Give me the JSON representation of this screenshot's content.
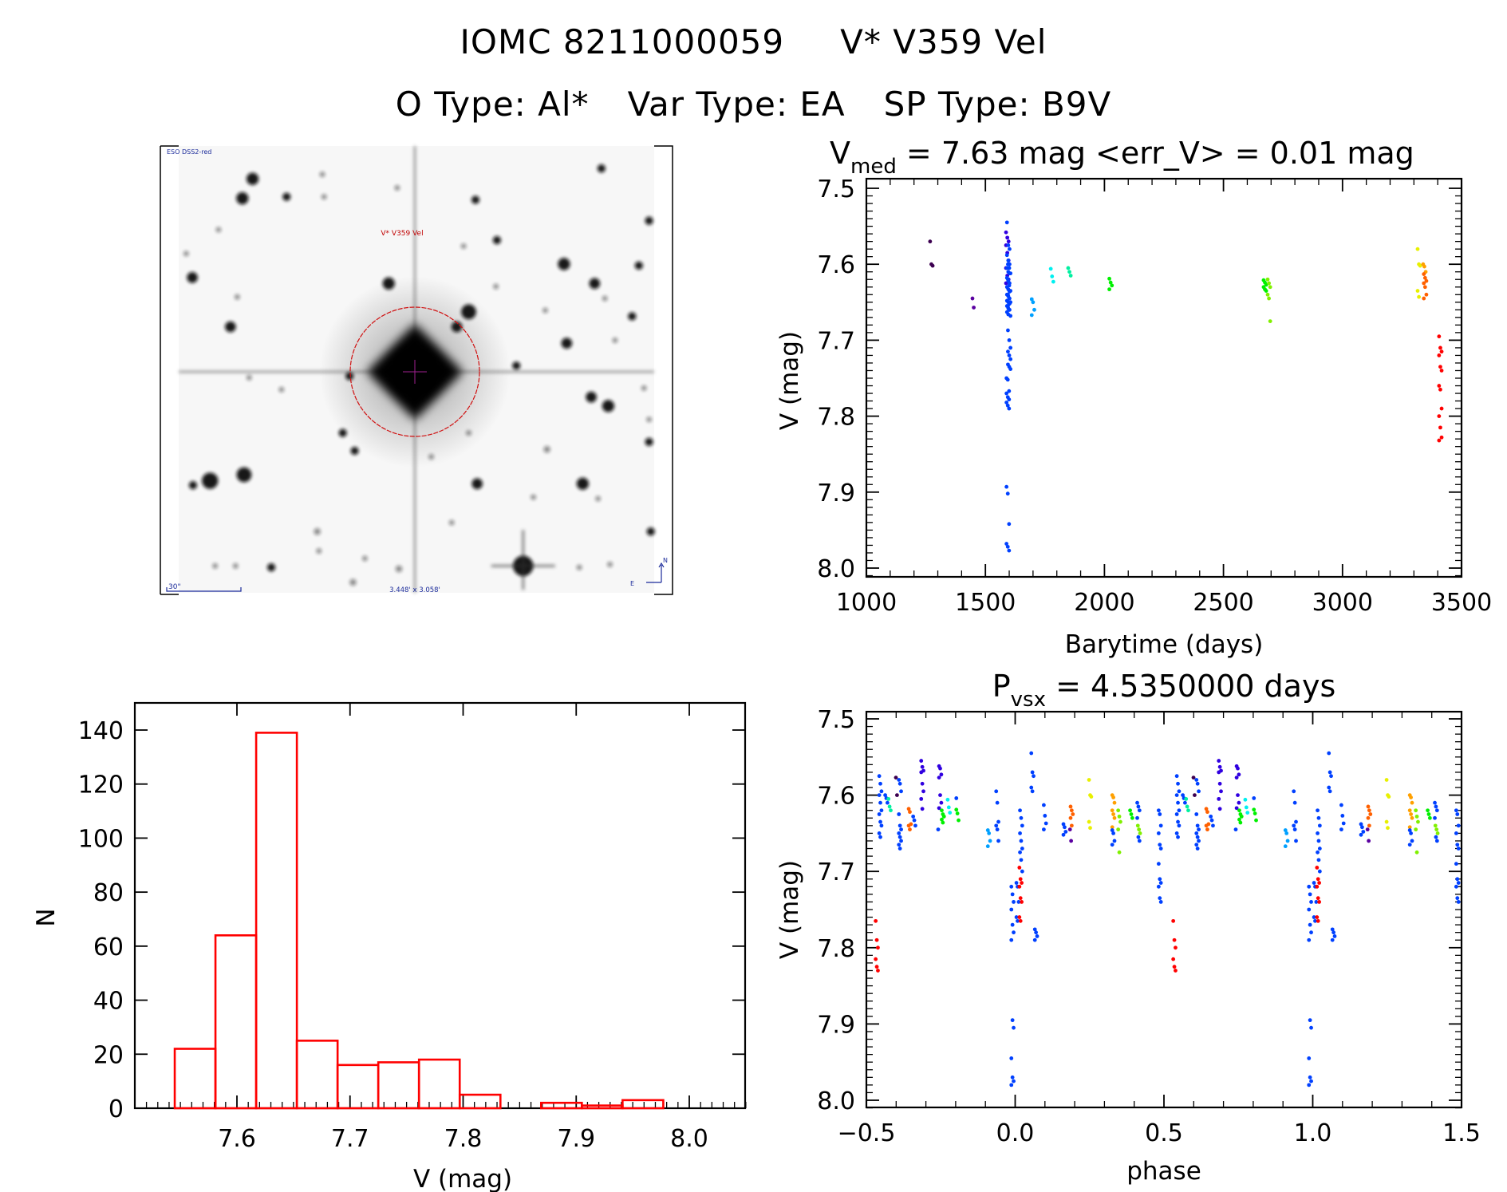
{
  "header": {
    "line1_id": "IOMC 8211000059",
    "line1_name": "V* V359 Vel",
    "line2_otype": "O Type: Al*",
    "line2_vartype": "Var Type: EA",
    "line2_sptype": "SP Type: B9V"
  },
  "finder_image": {
    "survey_label": "ESO DSS2-red",
    "target_label": "V* V359 Vel",
    "scale_label": "30\"",
    "fov_label": "3.448' x 3.058'",
    "north_label": "N",
    "east_label": "E"
  },
  "colors": {
    "dpurple": "#3c0050",
    "purple": "#5a00a0",
    "indigo": "#3000e0",
    "blue": "#0040ff",
    "lightblue": "#00a0ff",
    "cyan": "#00f0f0",
    "teal": "#00f0a0",
    "green": "#00f000",
    "lime": "#80f000",
    "yellow": "#e8f000",
    "orange": "#ffa000",
    "dorange": "#ff6000",
    "red": "#ff0000",
    "hist": "#ff0000"
  },
  "chart_data": [
    {
      "type": "scatter",
      "title_main": "V",
      "title_sub": "med",
      "title_rest": " = 7.63 mag <err_V> = 0.01 mag",
      "xlabel": "Barytime (days)",
      "ylabel": "V (mag)",
      "xlim": [
        1000,
        3500
      ],
      "ylim": [
        7.5,
        8.0
      ],
      "y_inverted": true,
      "xticks": [
        "1000",
        "1500",
        "2000",
        "2500",
        "3000",
        "3500"
      ],
      "yticks": [
        "7.5",
        "7.6",
        "7.7",
        "7.8",
        "7.9",
        "8.0"
      ],
      "groups": [
        {
          "t": 1273,
          "c": "dpurple",
          "m": [
            7.57,
            7.6,
            7.602
          ]
        },
        {
          "t": 1451,
          "c": "purple",
          "m": [
            7.645,
            7.657
          ]
        },
        {
          "t": 1592,
          "c": "indigo",
          "m": [
            7.558,
            7.565,
            7.57,
            7.575,
            7.585,
            7.595,
            7.605,
            7.615,
            7.62,
            7.625
          ]
        },
        {
          "t": 1596,
          "c": "blue",
          "m": [
            7.545,
            7.575,
            7.58,
            7.588,
            7.595,
            7.6,
            7.605,
            7.61,
            7.612,
            7.618,
            7.622,
            7.625,
            7.63,
            7.633,
            7.636,
            7.64,
            7.642,
            7.645,
            7.648,
            7.65,
            7.652,
            7.655,
            7.658,
            7.66,
            7.663,
            7.666
          ]
        },
        {
          "t": 1600,
          "c": "blue",
          "m": [
            7.6,
            7.605,
            7.612,
            7.62,
            7.628,
            7.635,
            7.64,
            7.645,
            7.65,
            7.655,
            7.66,
            7.668,
            7.687,
            7.7,
            7.71,
            7.715,
            7.72,
            7.725,
            7.732,
            7.735,
            7.738
          ]
        },
        {
          "t": 1594,
          "c": "blue",
          "m": [
            7.75,
            7.752,
            7.767,
            7.77,
            7.775,
            7.778,
            7.782,
            7.786,
            7.79,
            7.893,
            7.902,
            7.942,
            7.968,
            7.972,
            7.977
          ]
        },
        {
          "t": 1700,
          "c": "lightblue",
          "m": [
            7.646,
            7.65,
            7.66,
            7.667
          ]
        },
        {
          "t": 1780,
          "c": "cyan",
          "m": [
            7.606,
            7.616,
            7.623
          ]
        },
        {
          "t": 1853,
          "c": "teal",
          "m": [
            7.605,
            7.61,
            7.615
          ]
        },
        {
          "t": 2026,
          "c": "green",
          "m": [
            7.619,
            7.624,
            7.628,
            7.633
          ]
        },
        {
          "t": 2674,
          "c": "green",
          "m": [
            7.621,
            7.624,
            7.627,
            7.63,
            7.633,
            7.635
          ]
        },
        {
          "t": 2691,
          "c": "lime",
          "m": [
            7.62,
            7.625,
            7.63,
            7.64,
            7.645,
            7.675
          ]
        },
        {
          "t": 3321,
          "c": "yellow",
          "m": [
            7.58,
            7.6,
            7.602,
            7.635,
            7.643
          ]
        },
        {
          "t": 3344,
          "c": "orange",
          "m": [
            7.6,
            7.603,
            7.61
          ]
        },
        {
          "t": 3347,
          "c": "dorange",
          "m": [
            7.613,
            7.618,
            7.622,
            7.625,
            7.63,
            7.64,
            7.645
          ]
        },
        {
          "t": 3411,
          "c": "red",
          "m": [
            7.695,
            7.71,
            7.715,
            7.72,
            7.735,
            7.74,
            7.76,
            7.765,
            7.79,
            7.8,
            7.815,
            7.828,
            7.832
          ]
        }
      ]
    },
    {
      "type": "scatter",
      "title_main": "P",
      "title_sub": "vsx",
      "title_rest": " = 4.5350000 days",
      "xlabel": "phase",
      "ylabel": "V (mag)",
      "xlim": [
        -0.5,
        1.5
      ],
      "ylim": [
        7.5,
        8.0
      ],
      "y_inverted": true,
      "phase_period": 1,
      "xticks": [
        "−0.5",
        "0.0",
        "0.5",
        "1.0",
        "1.5"
      ],
      "yticks": [
        "7.5",
        "7.6",
        "7.7",
        "7.8",
        "7.9",
        "8.0"
      ],
      "groups": [
        {
          "p": 0.991,
          "c": "blue",
          "m": [
            7.72,
            7.73,
            7.74,
            7.75,
            7.77,
            7.78,
            7.79,
            7.895,
            7.905,
            7.945,
            7.97,
            7.975,
            7.98
          ]
        },
        {
          "p": 0.008,
          "c": "blue",
          "m": [
            7.715,
            7.72,
            7.74,
            7.76,
            7.765
          ]
        },
        {
          "p": 0.018,
          "c": "red",
          "m": [
            7.695,
            7.71,
            7.715,
            7.72,
            7.735,
            7.74,
            7.76,
            7.765
          ]
        },
        {
          "p": 0.02,
          "c": "blue",
          "m": [
            7.62,
            7.63,
            7.64,
            7.65,
            7.66,
            7.67,
            7.675,
            7.685,
            7.7
          ]
        },
        {
          "p": 0.058,
          "c": "blue",
          "m": [
            7.545,
            7.57,
            7.575,
            7.59,
            7.595
          ]
        },
        {
          "p": 0.07,
          "c": "blue",
          "m": [
            7.776,
            7.78,
            7.785,
            7.79
          ]
        },
        {
          "p": 0.1,
          "c": "blue",
          "m": [
            7.613,
            7.627,
            7.637,
            7.645
          ]
        },
        {
          "p": 0.166,
          "c": "blue",
          "m": [
            7.638,
            7.642,
            7.648,
            7.652
          ]
        },
        {
          "p": 0.19,
          "c": "dorange",
          "m": [
            7.615,
            7.62,
            7.625,
            7.63,
            7.64
          ]
        },
        {
          "p": 0.188,
          "c": "purple",
          "m": [
            7.645,
            7.66
          ]
        },
        {
          "p": 0.252,
          "c": "yellow",
          "m": [
            7.58,
            7.6,
            7.602,
            7.635,
            7.643
          ]
        },
        {
          "p": 0.33,
          "c": "orange",
          "m": [
            7.6,
            7.603,
            7.61,
            7.62,
            7.625,
            7.63,
            7.642
          ]
        },
        {
          "p": 0.33,
          "c": "blue",
          "m": [
            7.646,
            7.65,
            7.66,
            7.665
          ]
        },
        {
          "p": 0.35,
          "c": "lime",
          "m": [
            7.62,
            7.628,
            7.635,
            7.645,
            7.675
          ]
        },
        {
          "p": 0.39,
          "c": "green",
          "m": [
            7.62,
            7.625,
            7.63
          ]
        },
        {
          "p": 0.414,
          "c": "blue",
          "m": [
            7.61,
            7.615,
            7.62,
            7.63,
            7.655,
            7.66
          ]
        },
        {
          "p": 0.416,
          "c": "lime",
          "m": [
            7.64,
            7.645,
            7.65
          ]
        },
        {
          "p": 0.486,
          "c": "blue",
          "m": [
            7.62,
            7.625,
            7.64,
            7.65,
            7.665,
            7.67,
            7.69,
            7.71,
            7.715,
            7.72,
            7.735,
            7.74
          ]
        },
        {
          "p": 0.535,
          "c": "red",
          "m": [
            7.765,
            7.79,
            7.8,
            7.815,
            7.825,
            7.83
          ]
        },
        {
          "p": 0.547,
          "c": "blue",
          "m": [
            7.575,
            7.585,
            7.595,
            7.6,
            7.61,
            7.62,
            7.625,
            7.635,
            7.64,
            7.65,
            7.655
          ]
        },
        {
          "p": 0.567,
          "c": "blue",
          "m": [
            7.6,
            7.604,
            7.61
          ]
        },
        {
          "p": 0.578,
          "c": "teal",
          "m": [
            7.605,
            7.615,
            7.62
          ]
        },
        {
          "p": 0.603,
          "c": "dpurple",
          "m": [
            7.577,
            7.6
          ]
        },
        {
          "p": 0.613,
          "c": "blue",
          "m": [
            7.58,
            7.585,
            7.595,
            7.625,
            7.64,
            7.645,
            7.65,
            7.655,
            7.66,
            7.665,
            7.67
          ]
        },
        {
          "p": 0.646,
          "c": "dorange",
          "m": [
            7.618,
            7.622,
            7.638,
            7.64,
            7.645
          ]
        },
        {
          "p": 0.661,
          "c": "blue",
          "m": [
            7.628,
            7.633,
            7.64
          ]
        },
        {
          "p": 0.688,
          "c": "indigo",
          "m": [
            7.555,
            7.563,
            7.568,
            7.57,
            7.585,
            7.595,
            7.605,
            7.618
          ]
        },
        {
          "p": 0.748,
          "c": "indigo",
          "m": [
            7.562,
            7.565,
            7.573,
            7.577,
            7.6,
            7.61,
            7.617
          ]
        },
        {
          "p": 0.757,
          "c": "green",
          "m": [
            7.62,
            7.625,
            7.628,
            7.632,
            7.636
          ]
        },
        {
          "p": 0.745,
          "c": "blue",
          "m": [
            7.645
          ]
        },
        {
          "p": 0.777,
          "c": "cyan",
          "m": [
            7.606,
            7.616,
            7.623
          ]
        },
        {
          "p": 0.806,
          "c": "green",
          "m": [
            7.619,
            7.624,
            7.633
          ]
        },
        {
          "p": 0.806,
          "c": "blue",
          "m": [
            7.604
          ]
        },
        {
          "p": 0.912,
          "c": "lightblue",
          "m": [
            7.646,
            7.65,
            7.66,
            7.667
          ]
        },
        {
          "p": 0.94,
          "c": "blue",
          "m": [
            7.595,
            7.61,
            7.635,
            7.64,
            7.645,
            7.66
          ]
        }
      ]
    },
    {
      "type": "bar",
      "subtype": "histogram",
      "xlabel": "V (mag)",
      "ylabel": "N",
      "xlim": [
        7.515,
        8.05
      ],
      "ylim": [
        0,
        146
      ],
      "xticks": [
        "7.6",
        "7.7",
        "7.8",
        "7.9",
        "8.0"
      ],
      "yticks": [
        "0",
        "20",
        "40",
        "60",
        "80",
        "100",
        "120",
        "140"
      ],
      "bin_start": 7.545,
      "bin_width": 0.036,
      "counts": [
        22,
        64,
        139,
        25,
        16,
        17,
        18,
        5,
        0,
        2,
        1,
        3
      ]
    }
  ]
}
